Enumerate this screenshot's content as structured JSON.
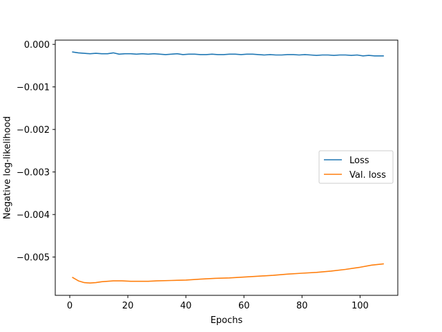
{
  "chart_data": {
    "type": "line",
    "title": "",
    "xlabel": "Epochs",
    "ylabel": "Negative log-likelihood",
    "xlim": [
      -5,
      113
    ],
    "ylim": [
      -0.0059,
      0.0001
    ],
    "x_ticks": [
      0,
      20,
      40,
      60,
      80,
      100
    ],
    "x_tick_labels": [
      "0",
      "20",
      "40",
      "60",
      "80",
      "100"
    ],
    "y_ticks": [
      0.0,
      -0.001,
      -0.002,
      -0.003,
      -0.004,
      -0.005
    ],
    "y_tick_labels": [
      "0.000",
      "−0.001",
      "−0.002",
      "−0.003",
      "−0.004",
      "−0.005"
    ],
    "grid": false,
    "legend_position": "center-right",
    "series": [
      {
        "name": "Loss",
        "color": "#1f77b4",
        "x": [
          1,
          3,
          5,
          7,
          9,
          11,
          13,
          15,
          17,
          19,
          21,
          23,
          25,
          27,
          29,
          31,
          33,
          35,
          37,
          39,
          41,
          43,
          45,
          47,
          49,
          51,
          53,
          55,
          57,
          59,
          61,
          63,
          65,
          67,
          69,
          71,
          73,
          75,
          77,
          79,
          81,
          83,
          85,
          87,
          89,
          91,
          93,
          95,
          97,
          99,
          101,
          103,
          105,
          108
        ],
        "values": [
          -0.00018,
          -0.0002,
          -0.00021,
          -0.00022,
          -0.00021,
          -0.00022,
          -0.00022,
          -0.0002,
          -0.00023,
          -0.00022,
          -0.00022,
          -0.00023,
          -0.00022,
          -0.00023,
          -0.00022,
          -0.00023,
          -0.00024,
          -0.00023,
          -0.00022,
          -0.00024,
          -0.00023,
          -0.00023,
          -0.00024,
          -0.00024,
          -0.00023,
          -0.00024,
          -0.00024,
          -0.00023,
          -0.00023,
          -0.00024,
          -0.00023,
          -0.00023,
          -0.00024,
          -0.00025,
          -0.00024,
          -0.00025,
          -0.00025,
          -0.00024,
          -0.00024,
          -0.00025,
          -0.00024,
          -0.00025,
          -0.00026,
          -0.00025,
          -0.00025,
          -0.00026,
          -0.00025,
          -0.00025,
          -0.00026,
          -0.00025,
          -0.00027,
          -0.00026,
          -0.00027,
          -0.00027
        ]
      },
      {
        "name": "Val. loss",
        "color": "#ff7f0e",
        "x": [
          1,
          3,
          5,
          7,
          9,
          11,
          13,
          15,
          18,
          21,
          24,
          27,
          30,
          35,
          40,
          45,
          50,
          55,
          60,
          65,
          70,
          75,
          80,
          85,
          90,
          95,
          100,
          104,
          108
        ],
        "values": [
          -0.00548,
          -0.00556,
          -0.0056,
          -0.00561,
          -0.0056,
          -0.00558,
          -0.00557,
          -0.00556,
          -0.00556,
          -0.00557,
          -0.00557,
          -0.00557,
          -0.00556,
          -0.00555,
          -0.00554,
          -0.00552,
          -0.0055,
          -0.00549,
          -0.00547,
          -0.00545,
          -0.00543,
          -0.0054,
          -0.00538,
          -0.00536,
          -0.00533,
          -0.00529,
          -0.00524,
          -0.00519,
          -0.00516
        ]
      }
    ]
  }
}
